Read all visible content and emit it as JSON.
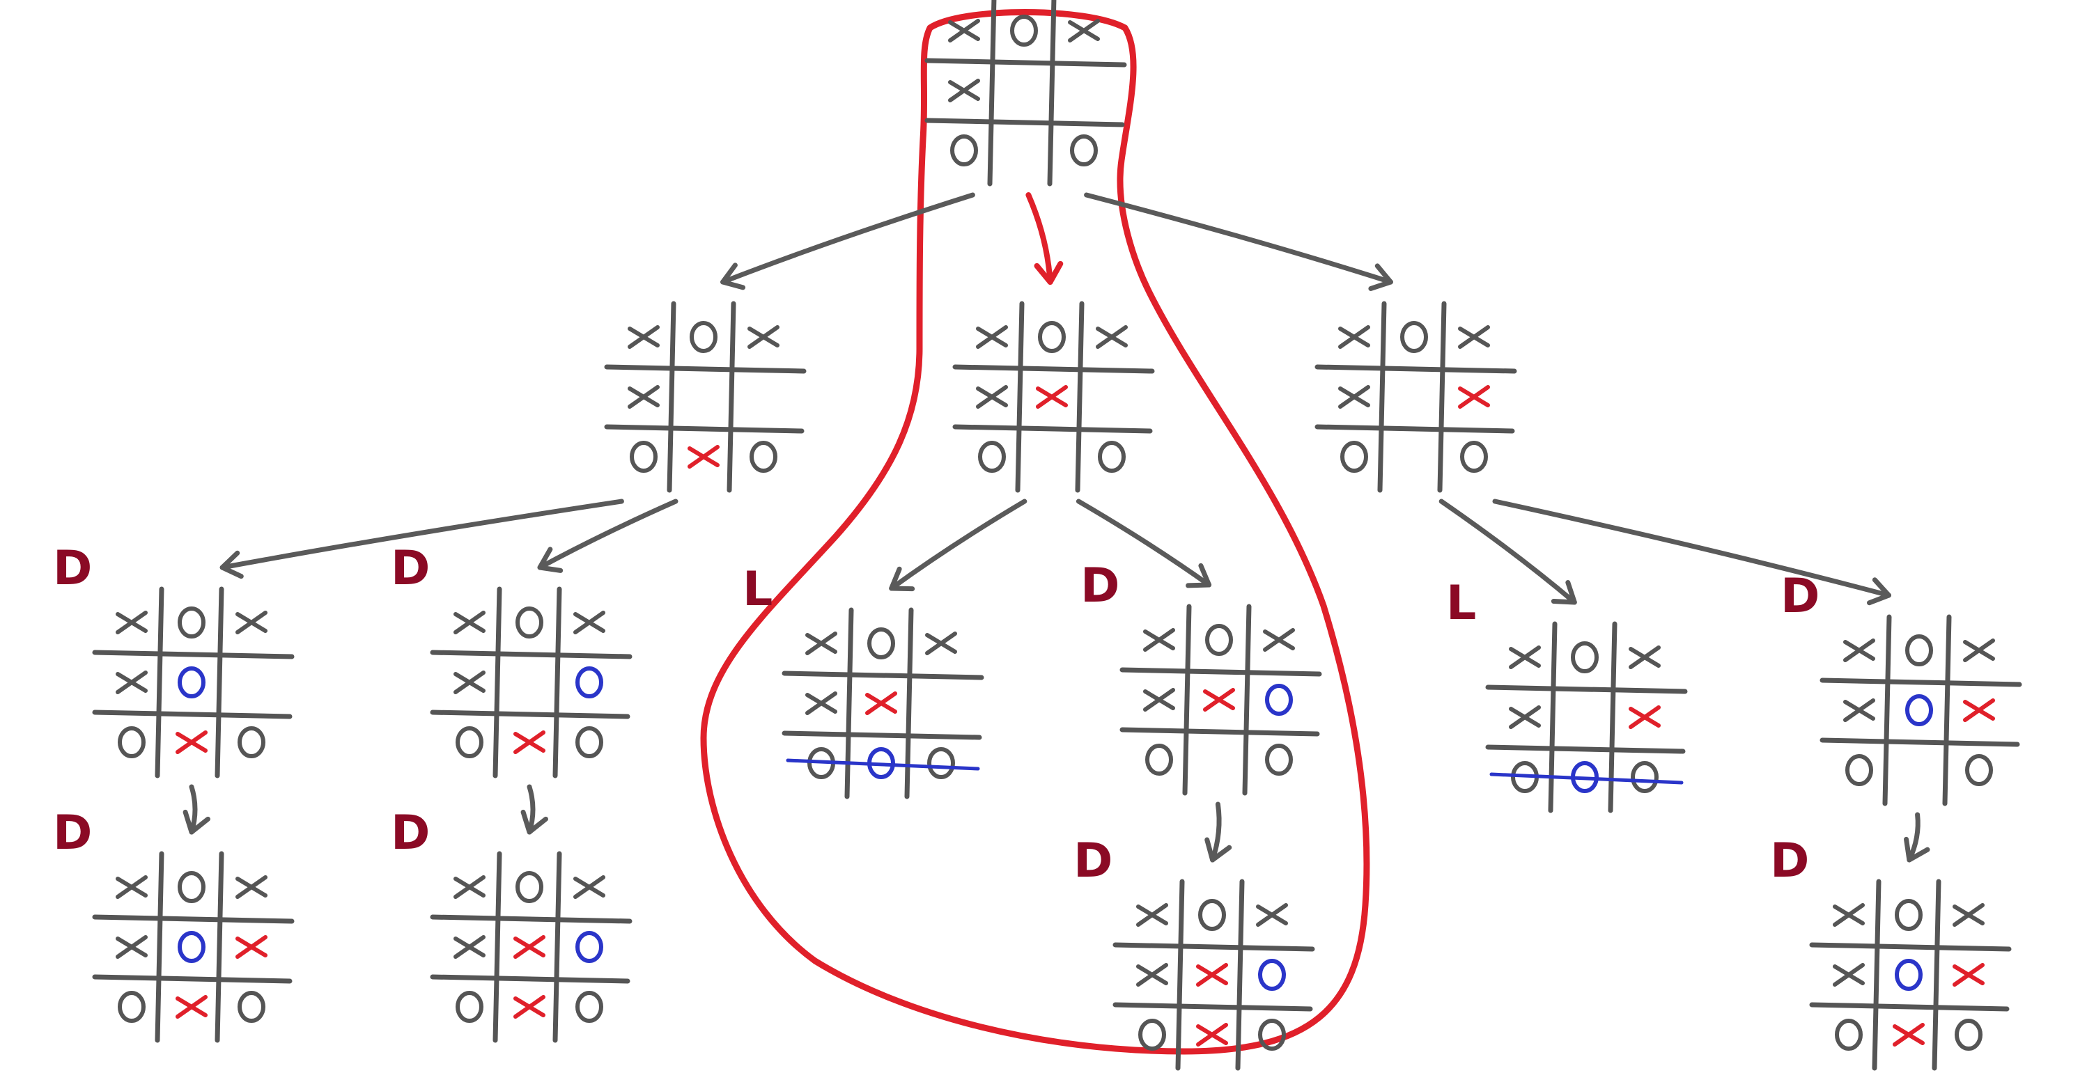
{
  "colors": {
    "existing": "#555555",
    "x_move": "#e0202a",
    "o_move": "#2a35c9",
    "result": "#8b0a25",
    "selected_path": "#e0202a"
  },
  "selected_path": [
    "root",
    "mid"
  ],
  "nodes": [
    {
      "id": "root",
      "result": "",
      "cells": [
        "X",
        "O",
        "X",
        "X",
        "",
        "",
        "O",
        "",
        "O"
      ],
      "colors": [
        "g",
        "g",
        "g",
        "g",
        "",
        "",
        "g",
        "",
        "g"
      ]
    },
    {
      "id": "left",
      "result": "",
      "cells": [
        "X",
        "O",
        "X",
        "X",
        "",
        "",
        "O",
        "X",
        "O"
      ],
      "colors": [
        "g",
        "g",
        "g",
        "g",
        "",
        "",
        "g",
        "r",
        "g"
      ]
    },
    {
      "id": "mid",
      "result": "",
      "cells": [
        "X",
        "O",
        "X",
        "X",
        "X",
        "",
        "O",
        "",
        "O"
      ],
      "colors": [
        "g",
        "g",
        "g",
        "g",
        "r",
        "",
        "g",
        "",
        "g"
      ]
    },
    {
      "id": "right",
      "result": "",
      "cells": [
        "X",
        "O",
        "X",
        "X",
        "",
        "X",
        "O",
        "",
        "O"
      ],
      "colors": [
        "g",
        "g",
        "g",
        "g",
        "",
        "r",
        "g",
        "",
        "g"
      ]
    },
    {
      "id": "ll",
      "result": "D",
      "cells": [
        "X",
        "O",
        "X",
        "X",
        "O",
        "",
        "O",
        "X",
        "O"
      ],
      "colors": [
        "g",
        "g",
        "g",
        "g",
        "b",
        "",
        "g",
        "r",
        "g"
      ]
    },
    {
      "id": "lr",
      "result": "D",
      "cells": [
        "X",
        "O",
        "X",
        "X",
        "",
        "O",
        "O",
        "X",
        "O"
      ],
      "colors": [
        "g",
        "g",
        "g",
        "g",
        "",
        "b",
        "g",
        "r",
        "g"
      ]
    },
    {
      "id": "ml",
      "result": "L",
      "cells": [
        "X",
        "O",
        "X",
        "X",
        "X",
        "",
        "O",
        "O",
        "O"
      ],
      "colors": [
        "g",
        "g",
        "g",
        "g",
        "r",
        "",
        "g",
        "b",
        "g"
      ],
      "win_row": 2
    },
    {
      "id": "mr",
      "result": "D",
      "cells": [
        "X",
        "O",
        "X",
        "X",
        "X",
        "O",
        "O",
        "",
        "O"
      ],
      "colors": [
        "g",
        "g",
        "g",
        "g",
        "r",
        "b",
        "g",
        "",
        "g"
      ]
    },
    {
      "id": "rl",
      "result": "L",
      "cells": [
        "X",
        "O",
        "X",
        "X",
        "",
        "X",
        "O",
        "O",
        "O"
      ],
      "colors": [
        "g",
        "g",
        "g",
        "g",
        "",
        "r",
        "g",
        "b",
        "g"
      ],
      "win_row": 2
    },
    {
      "id": "rr",
      "result": "D",
      "cells": [
        "X",
        "O",
        "X",
        "X",
        "O",
        "X",
        "O",
        "",
        "O"
      ],
      "colors": [
        "g",
        "g",
        "g",
        "g",
        "b",
        "r",
        "g",
        "",
        "g"
      ]
    },
    {
      "id": "llc",
      "result": "D",
      "cells": [
        "X",
        "O",
        "X",
        "X",
        "O",
        "X",
        "O",
        "X",
        "O"
      ],
      "colors": [
        "g",
        "g",
        "g",
        "g",
        "b",
        "r",
        "g",
        "r",
        "g"
      ]
    },
    {
      "id": "lrc",
      "result": "D",
      "cells": [
        "X",
        "O",
        "X",
        "X",
        "X",
        "O",
        "O",
        "X",
        "O"
      ],
      "colors": [
        "g",
        "g",
        "g",
        "g",
        "r",
        "b",
        "g",
        "r",
        "g"
      ]
    },
    {
      "id": "mrc",
      "result": "D",
      "cells": [
        "X",
        "O",
        "X",
        "X",
        "X",
        "O",
        "O",
        "X",
        "O"
      ],
      "colors": [
        "g",
        "g",
        "g",
        "g",
        "r",
        "b",
        "g",
        "r",
        "g"
      ]
    },
    {
      "id": "rrc",
      "result": "D",
      "cells": [
        "X",
        "O",
        "X",
        "X",
        "O",
        "X",
        "O",
        "X",
        "O"
      ],
      "colors": [
        "g",
        "g",
        "g",
        "g",
        "b",
        "r",
        "g",
        "r",
        "g"
      ]
    }
  ],
  "edges": [
    [
      "root",
      "left"
    ],
    [
      "root",
      "mid"
    ],
    [
      "root",
      "right"
    ],
    [
      "left",
      "ll"
    ],
    [
      "left",
      "lr"
    ],
    [
      "mid",
      "ml"
    ],
    [
      "mid",
      "mr"
    ],
    [
      "right",
      "rl"
    ],
    [
      "right",
      "rr"
    ],
    [
      "ll",
      "llc"
    ],
    [
      "lr",
      "lrc"
    ],
    [
      "mr",
      "mrc"
    ],
    [
      "rr",
      "rrc"
    ]
  ]
}
